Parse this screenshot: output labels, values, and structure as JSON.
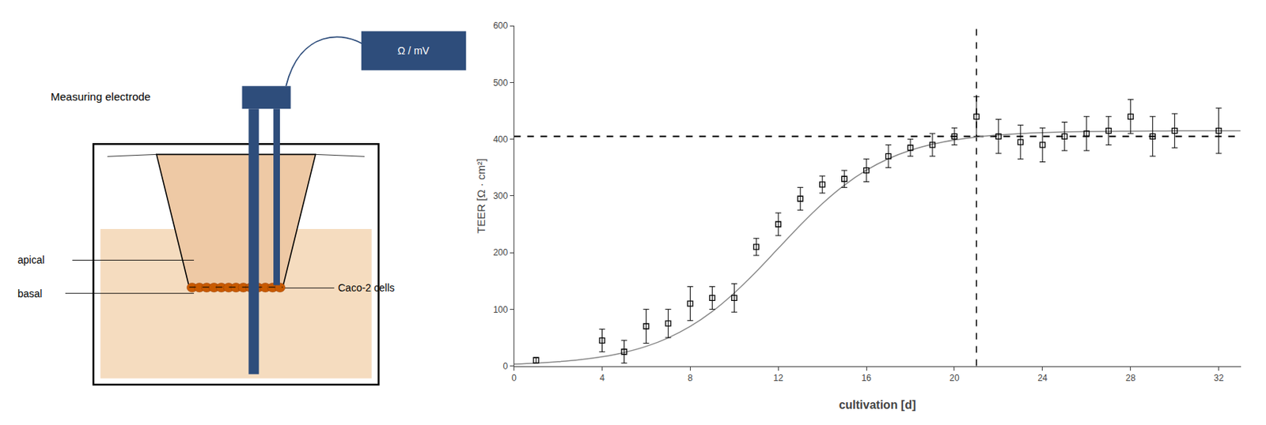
{
  "chart_data": {
    "type": "scatter",
    "xlabel": "cultivation [d]",
    "ylabel": "TEER [Ω · cm²]",
    "xlim": [
      0,
      33
    ],
    "ylim": [
      0,
      600
    ],
    "xticks": [
      0,
      4,
      8,
      12,
      16,
      20,
      24,
      28,
      32
    ],
    "yticks": [
      0,
      100,
      200,
      300,
      400,
      500,
      600
    ],
    "grid": false,
    "series": [
      {
        "type": "line",
        "color": "#888888",
        "line_style": "solid",
        "x": [
          0,
          1,
          2,
          3,
          4,
          5,
          6,
          7,
          8,
          9,
          10,
          11,
          12,
          13,
          14,
          15,
          16,
          17,
          18,
          19,
          20,
          21,
          22,
          23,
          24,
          25,
          26,
          27,
          28,
          29,
          30,
          31,
          32,
          33
        ],
        "values": [
          3.39,
          5.03,
          7.46,
          11.04,
          16.25,
          23.79,
          34.52,
          49.47,
          69.71,
          96.06,
          128.66,
          166.55,
          207.5,
          248.45,
          286.34,
          318.94,
          345.29,
          365.53,
          380.48,
          391.21,
          398.75,
          403.96,
          407.54,
          409.97,
          411.61,
          412.72,
          413.47,
          413.97,
          414.31,
          414.54,
          414.69,
          414.79,
          414.86,
          414.91
        ]
      },
      {
        "type": "scatter",
        "color": "#000000",
        "marker": "square-open",
        "x": [
          1,
          4,
          5,
          6,
          7,
          8,
          9,
          10,
          11,
          12,
          13,
          14,
          15,
          16,
          17,
          18,
          19,
          20,
          21,
          22,
          23,
          24,
          25,
          26,
          27,
          28,
          29,
          30,
          32
        ],
        "values": [
          10,
          45,
          25,
          70,
          75,
          110,
          120,
          120,
          210,
          250,
          295,
          320,
          330,
          345,
          370,
          385,
          390,
          405,
          440,
          405,
          395,
          390,
          405,
          410,
          415,
          440,
          405,
          415,
          415
        ],
        "error": [
          5,
          20,
          20,
          30,
          25,
          30,
          20,
          25,
          15,
          20,
          20,
          15,
          15,
          20,
          20,
          15,
          20,
          15,
          35,
          30,
          30,
          30,
          25,
          30,
          25,
          30,
          35,
          30,
          40
        ]
      }
    ],
    "reference_lines": [
      {
        "axis": "y",
        "value": 405,
        "line_style": "dash",
        "color": "#000000"
      },
      {
        "axis": "x",
        "value": 21,
        "line_style": "dash",
        "color": "#000000"
      }
    ],
    "annotations": [
      {
        "text": "Ω / mV"
      },
      {
        "text": "Measuring electrode"
      },
      {
        "text": "apical"
      },
      {
        "text": "basal"
      },
      {
        "text": "Caco-2 cells"
      }
    ]
  }
}
